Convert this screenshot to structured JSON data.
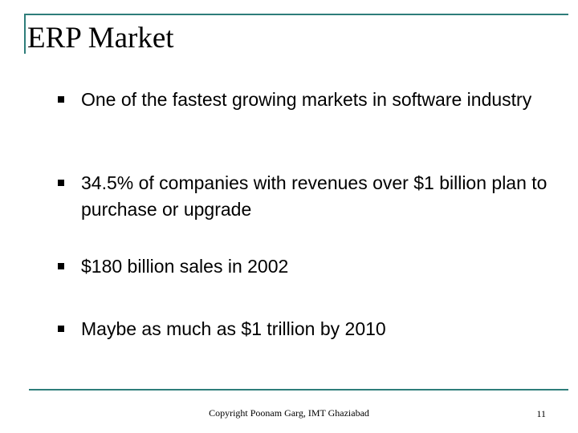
{
  "slide": {
    "title": "ERP Market",
    "bullets": [
      {
        "text": "One of the fastest growing markets in software industry"
      },
      {
        "text": "34.5% of companies with revenues over $1 billion plan to purchase or upgrade"
      },
      {
        "text": "$180 billion  sales in 2002"
      },
      {
        "text": "Maybe as much as $1 trillion by 2010"
      }
    ]
  },
  "footer": {
    "copyright": "Copyright Poonam Garg, IMT Ghaziabad",
    "page_number": "11"
  },
  "colors": {
    "accent_rule": "#2e7d7a",
    "text": "#000000",
    "background": "#ffffff"
  },
  "icons": {
    "bullet": "square-bullet-icon"
  }
}
